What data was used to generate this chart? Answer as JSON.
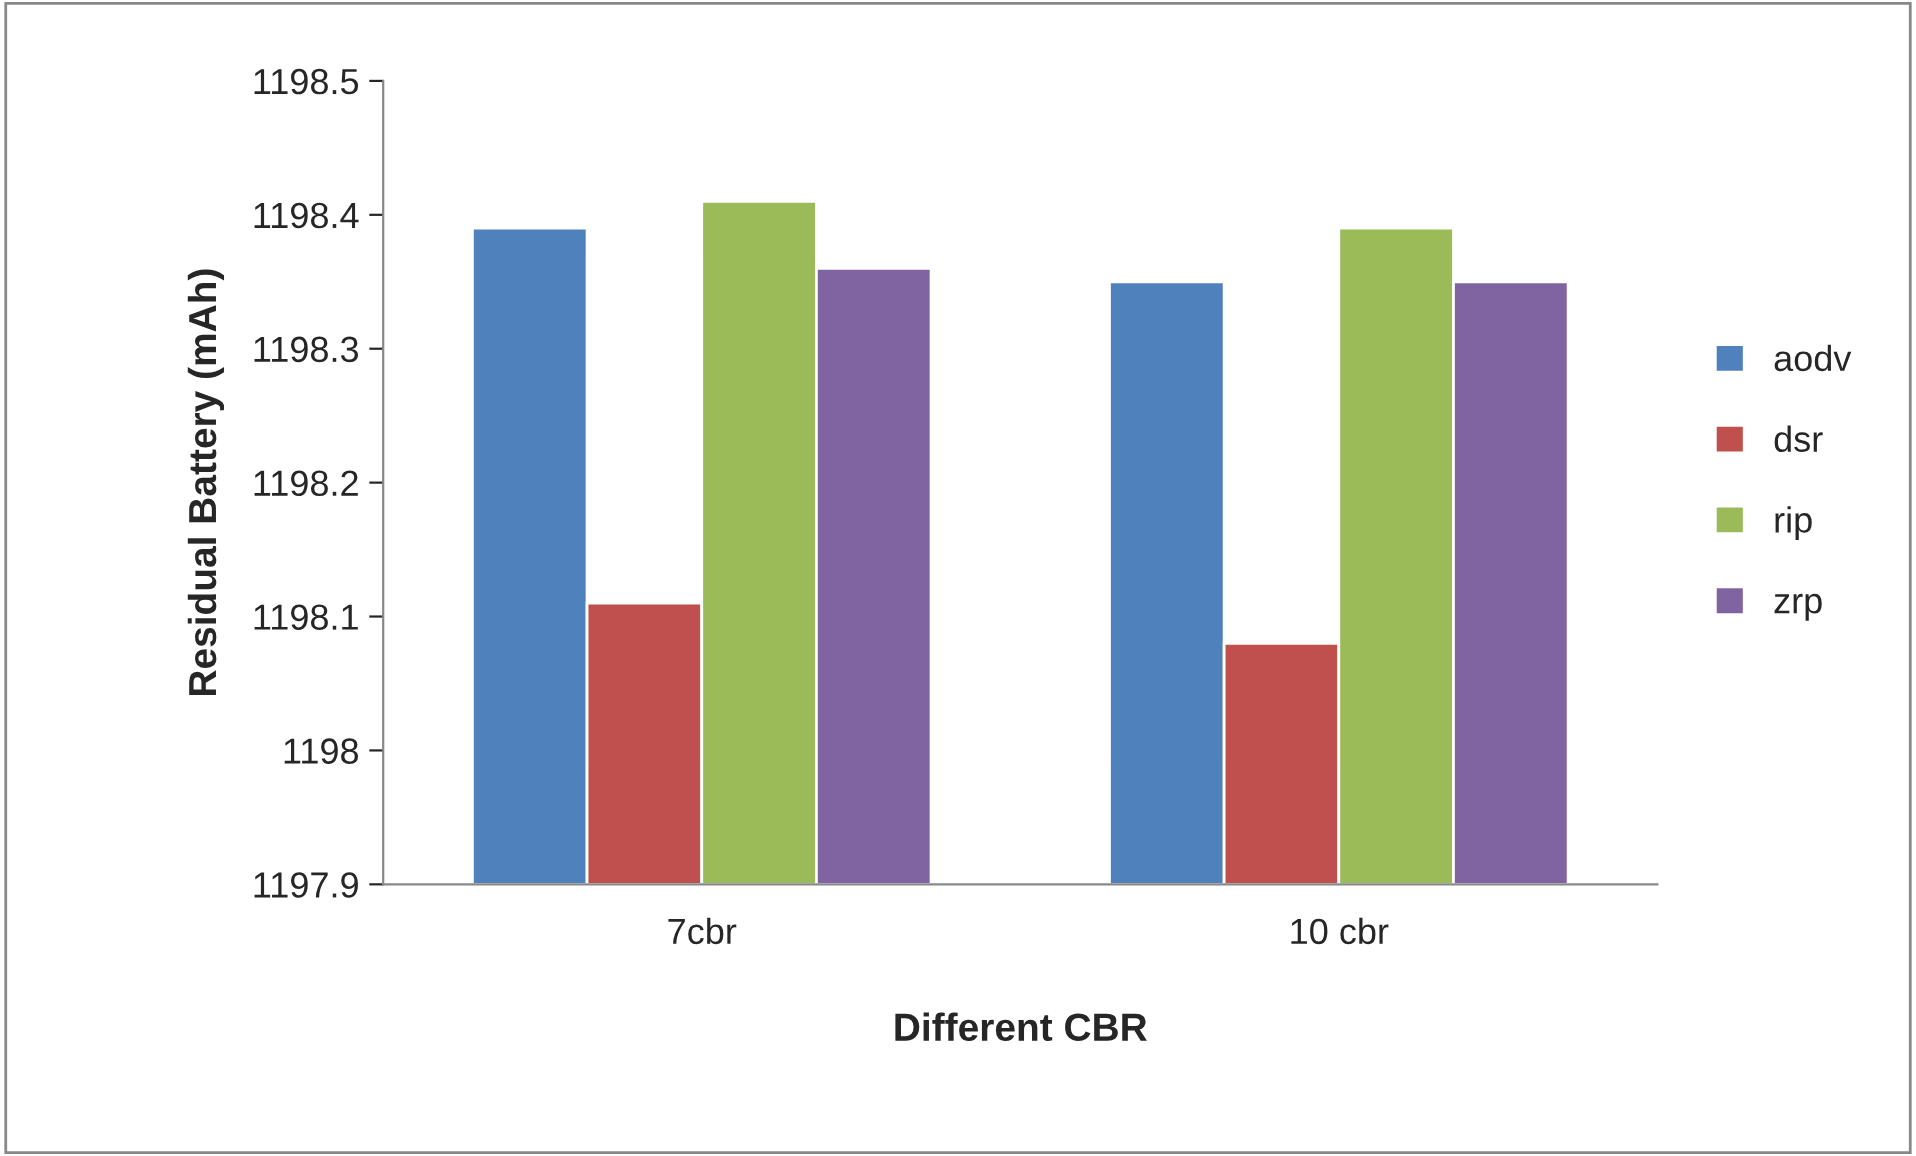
{
  "chart_data": {
    "type": "bar",
    "xlabel": "Different CBR",
    "ylabel": "Residual Battery (mAh)",
    "categories": [
      "7cbr",
      "10 cbr"
    ],
    "series": [
      {
        "name": "aodv",
        "color": "#4f81bd",
        "values": [
          1198.39,
          1198.35
        ]
      },
      {
        "name": "dsr",
        "color": "#c0504d",
        "values": [
          1198.11,
          1198.08
        ]
      },
      {
        "name": "rip",
        "color": "#9bbb59",
        "values": [
          1198.41,
          1198.39
        ]
      },
      {
        "name": "zrp",
        "color": "#8064a2",
        "values": [
          1198.36,
          1198.35
        ]
      }
    ],
    "ylim": [
      1197.9,
      1198.5
    ],
    "yticks": [
      1197.9,
      1198,
      1198.1,
      1198.2,
      1198.3,
      1198.4,
      1198.5
    ],
    "grid": false,
    "legend": "right"
  }
}
